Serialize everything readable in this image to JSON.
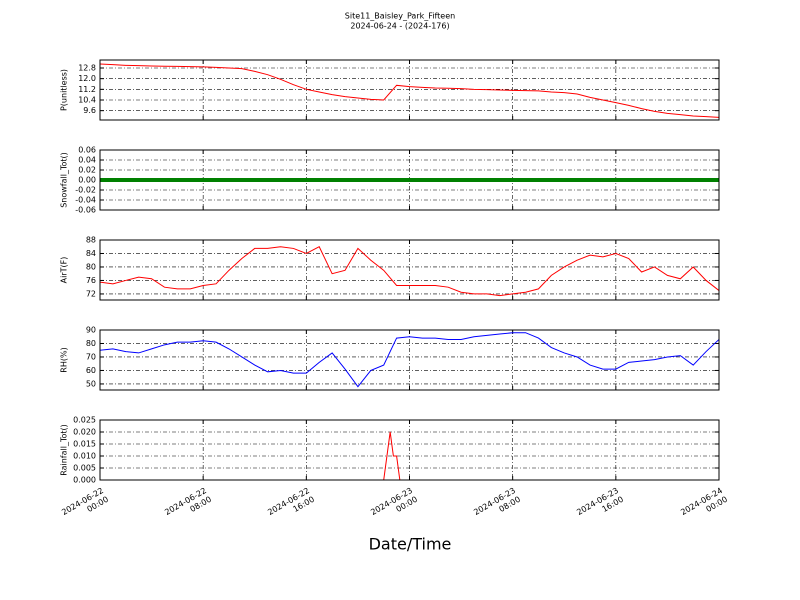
{
  "title": "Site11_Baisley_Park_Fifteen",
  "subtitle": "2024-06-24 - (2024-176)",
  "xlabel": "Date/Time",
  "xlim": [
    "2024-06-22 00:00",
    "2024-06-24 00:00"
  ],
  "xticks": [
    {
      "value": "2024-06-22 00:00",
      "label": "2024-06-22\n00:00"
    },
    {
      "value": "2024-06-22 08:00",
      "label": "2024-06-22\n08:00"
    },
    {
      "value": "2024-06-22 16:00",
      "label": "2024-06-22\n16:00"
    },
    {
      "value": "2024-06-23 00:00",
      "label": "2024-06-23\n00:00"
    },
    {
      "value": "2024-06-23 08:00",
      "label": "2024-06-23\n08:00"
    },
    {
      "value": "2024-06-23 16:00",
      "label": "2024-06-23\n16:00"
    },
    {
      "value": "2024-06-24 00:00",
      "label": "2024-06-24\n00:00"
    }
  ],
  "chart_data": [
    {
      "type": "line",
      "ylabel": "P(unitless)",
      "ylim": [
        8.9,
        13.4
      ],
      "grid": true,
      "color": "#ff0000",
      "yticks": [
        9.6,
        10.4,
        11.2,
        {
          "value": 12.0,
          "label": "12.0"
        },
        12.8
      ],
      "x": [
        "2024-06-22 00:00",
        "2024-06-22 01:00",
        "2024-06-22 02:00",
        "2024-06-22 03:00",
        "2024-06-22 04:00",
        "2024-06-22 05:00",
        "2024-06-22 06:00",
        "2024-06-22 07:00",
        "2024-06-22 08:00",
        "2024-06-22 09:00",
        "2024-06-22 10:00",
        "2024-06-22 11:00",
        "2024-06-22 12:00",
        "2024-06-22 13:00",
        "2024-06-22 14:00",
        "2024-06-22 15:00",
        "2024-06-22 16:00",
        "2024-06-22 17:00",
        "2024-06-22 18:00",
        "2024-06-22 19:00",
        "2024-06-22 20:00",
        "2024-06-22 21:00",
        "2024-06-22 22:00",
        "2024-06-22 23:00",
        "2024-06-23 00:00",
        "2024-06-23 01:00",
        "2024-06-23 02:00",
        "2024-06-23 03:00",
        "2024-06-23 04:00",
        "2024-06-23 05:00",
        "2024-06-23 06:00",
        "2024-06-23 07:00",
        "2024-06-23 08:00",
        "2024-06-23 09:00",
        "2024-06-23 10:00",
        "2024-06-23 11:00",
        "2024-06-23 12:00",
        "2024-06-23 13:00",
        "2024-06-23 14:00",
        "2024-06-23 15:00",
        "2024-06-23 16:00",
        "2024-06-23 17:00",
        "2024-06-23 18:00",
        "2024-06-23 19:00",
        "2024-06-23 20:00",
        "2024-06-23 21:00",
        "2024-06-23 22:00",
        "2024-06-23 23:00",
        "2024-06-24 00:00"
      ],
      "values": [
        13.1,
        13.05,
        13.0,
        12.98,
        12.95,
        12.93,
        12.92,
        12.9,
        12.88,
        12.85,
        12.8,
        12.75,
        12.55,
        12.3,
        11.95,
        11.55,
        11.2,
        11.0,
        10.8,
        10.65,
        10.55,
        10.45,
        10.4,
        11.5,
        11.4,
        11.35,
        11.3,
        11.28,
        11.25,
        11.2,
        11.18,
        11.15,
        11.12,
        11.1,
        11.08,
        11.0,
        10.95,
        10.85,
        10.6,
        10.4,
        10.2,
        10.0,
        9.75,
        9.55,
        9.4,
        9.3,
        9.2,
        9.15,
        9.1
      ]
    },
    {
      "type": "line",
      "ylabel": "Snowfall_Tot()",
      "ylim": [
        -0.06,
        0.06
      ],
      "grid": true,
      "color": "#008000",
      "yticks": [
        -0.06,
        -0.04,
        -0.02,
        {
          "value": 0,
          "label": "0.00"
        },
        0.02,
        0.04,
        0.06
      ],
      "x": [
        "2024-06-22 00:00",
        "2024-06-22 01:00",
        "2024-06-22 02:00",
        "2024-06-22 03:00",
        "2024-06-22 04:00",
        "2024-06-22 05:00",
        "2024-06-22 06:00",
        "2024-06-22 07:00",
        "2024-06-22 08:00",
        "2024-06-22 09:00",
        "2024-06-22 10:00",
        "2024-06-22 11:00",
        "2024-06-22 12:00",
        "2024-06-22 13:00",
        "2024-06-22 14:00",
        "2024-06-22 15:00",
        "2024-06-22 16:00",
        "2024-06-22 17:00",
        "2024-06-22 18:00",
        "2024-06-22 19:00",
        "2024-06-22 20:00",
        "2024-06-22 21:00",
        "2024-06-22 22:00",
        "2024-06-22 23:00",
        "2024-06-23 00:00",
        "2024-06-23 01:00",
        "2024-06-23 02:00",
        "2024-06-23 03:00",
        "2024-06-23 04:00",
        "2024-06-23 05:00",
        "2024-06-23 06:00",
        "2024-06-23 07:00",
        "2024-06-23 08:00",
        "2024-06-23 09:00",
        "2024-06-23 10:00",
        "2024-06-23 11:00",
        "2024-06-23 12:00",
        "2024-06-23 13:00",
        "2024-06-23 14:00",
        "2024-06-23 15:00",
        "2024-06-23 16:00",
        "2024-06-23 17:00",
        "2024-06-23 18:00",
        "2024-06-23 19:00",
        "2024-06-23 20:00",
        "2024-06-23 21:00",
        "2024-06-23 22:00",
        "2024-06-23 23:00",
        "2024-06-24 00:00"
      ],
      "values": [
        0,
        0,
        0,
        0,
        0,
        0,
        0,
        0,
        0,
        0,
        0,
        0,
        0,
        0,
        0,
        0,
        0,
        0,
        0,
        0,
        0,
        0,
        0,
        0,
        0,
        0,
        0,
        0,
        0,
        0,
        0,
        0,
        0,
        0,
        0,
        0,
        0,
        0,
        0,
        0,
        0,
        0,
        0,
        0,
        0,
        0,
        0,
        0,
        0
      ]
    },
    {
      "type": "line",
      "ylabel": "AirT(F)",
      "ylim": [
        70.2,
        88
      ],
      "grid": true,
      "color": "#ff0000",
      "yticks": [
        72,
        76,
        80,
        84,
        88
      ],
      "x": [
        "2024-06-22 00:00",
        "2024-06-22 01:00",
        "2024-06-22 02:00",
        "2024-06-22 03:00",
        "2024-06-22 04:00",
        "2024-06-22 05:00",
        "2024-06-22 06:00",
        "2024-06-22 07:00",
        "2024-06-22 08:00",
        "2024-06-22 09:00",
        "2024-06-22 10:00",
        "2024-06-22 11:00",
        "2024-06-22 12:00",
        "2024-06-22 13:00",
        "2024-06-22 14:00",
        "2024-06-22 15:00",
        "2024-06-22 16:00",
        "2024-06-22 17:00",
        "2024-06-22 18:00",
        "2024-06-22 19:00",
        "2024-06-22 20:00",
        "2024-06-22 21:00",
        "2024-06-22 22:00",
        "2024-06-22 23:00",
        "2024-06-23 00:00",
        "2024-06-23 01:00",
        "2024-06-23 02:00",
        "2024-06-23 03:00",
        "2024-06-23 04:00",
        "2024-06-23 05:00",
        "2024-06-23 06:00",
        "2024-06-23 07:00",
        "2024-06-23 08:00",
        "2024-06-23 09:00",
        "2024-06-23 10:00",
        "2024-06-23 11:00",
        "2024-06-23 12:00",
        "2024-06-23 13:00",
        "2024-06-23 14:00",
        "2024-06-23 15:00",
        "2024-06-23 16:00",
        "2024-06-23 17:00",
        "2024-06-23 18:00",
        "2024-06-23 19:00",
        "2024-06-23 20:00",
        "2024-06-23 21:00",
        "2024-06-23 22:00",
        "2024-06-23 23:00",
        "2024-06-24 00:00"
      ],
      "values": [
        75.5,
        75,
        76,
        77,
        76.5,
        74,
        73.5,
        73.5,
        74.5,
        75,
        79,
        82.5,
        85.5,
        85.5,
        86,
        85.5,
        84,
        86,
        78,
        79,
        85.5,
        82,
        79,
        74.5,
        74.5,
        74.5,
        74.5,
        74,
        72.5,
        72,
        72,
        71.5,
        72,
        72.5,
        73.5,
        77.5,
        80,
        82,
        83.5,
        83,
        84,
        82.5,
        78.5,
        80,
        77.5,
        76.5,
        80,
        76,
        73
      ]
    },
    {
      "type": "line",
      "ylabel": "RH(%)",
      "ylim": [
        45.5,
        90
      ],
      "grid": true,
      "color": "#0000ff",
      "yticks": [
        50,
        60,
        70,
        80,
        90
      ],
      "x": [
        "2024-06-22 00:00",
        "2024-06-22 01:00",
        "2024-06-22 02:00",
        "2024-06-22 03:00",
        "2024-06-22 04:00",
        "2024-06-22 05:00",
        "2024-06-22 06:00",
        "2024-06-22 07:00",
        "2024-06-22 08:00",
        "2024-06-22 09:00",
        "2024-06-22 10:00",
        "2024-06-22 11:00",
        "2024-06-22 12:00",
        "2024-06-22 13:00",
        "2024-06-22 14:00",
        "2024-06-22 15:00",
        "2024-06-22 16:00",
        "2024-06-22 17:00",
        "2024-06-22 18:00",
        "2024-06-22 19:00",
        "2024-06-22 20:00",
        "2024-06-22 21:00",
        "2024-06-22 22:00",
        "2024-06-22 23:00",
        "2024-06-23 00:00",
        "2024-06-23 01:00",
        "2024-06-23 02:00",
        "2024-06-23 03:00",
        "2024-06-23 04:00",
        "2024-06-23 05:00",
        "2024-06-23 06:00",
        "2024-06-23 07:00",
        "2024-06-23 08:00",
        "2024-06-23 09:00",
        "2024-06-23 10:00",
        "2024-06-23 11:00",
        "2024-06-23 12:00",
        "2024-06-23 13:00",
        "2024-06-23 14:00",
        "2024-06-23 15:00",
        "2024-06-23 16:00",
        "2024-06-23 17:00",
        "2024-06-23 18:00",
        "2024-06-23 19:00",
        "2024-06-23 20:00",
        "2024-06-23 21:00",
        "2024-06-23 22:00",
        "2024-06-23 23:00",
        "2024-06-24 00:00"
      ],
      "values": [
        75,
        76,
        74,
        73,
        76,
        79,
        81,
        81,
        82,
        81,
        76,
        70,
        64,
        59,
        60,
        58,
        58,
        66,
        73,
        61,
        48,
        60,
        64,
        84,
        85,
        84,
        84,
        83,
        83,
        85,
        86,
        87,
        88,
        88,
        84,
        77,
        73,
        70,
        64,
        61,
        61,
        66,
        67,
        68,
        70,
        71,
        64,
        74,
        83
      ]
    },
    {
      "type": "line",
      "ylabel": "Rainfall_Tot()",
      "ylim": [
        0,
        0.025
      ],
      "grid": true,
      "color": "#ff0000",
      "yticks": [
        {
          "value": 0,
          "label": "0.000"
        },
        0.005,
        {
          "value": 0.01,
          "label": "0.010"
        },
        0.015,
        {
          "value": 0.02,
          "label": "0.020"
        },
        0.025
      ],
      "x": [
        "2024-06-22 00:00",
        "2024-06-22 01:00",
        "2024-06-22 02:00",
        "2024-06-22 03:00",
        "2024-06-22 04:00",
        "2024-06-22 05:00",
        "2024-06-22 06:00",
        "2024-06-22 07:00",
        "2024-06-22 08:00",
        "2024-06-22 09:00",
        "2024-06-22 10:00",
        "2024-06-22 11:00",
        "2024-06-22 12:00",
        "2024-06-22 13:00",
        "2024-06-22 14:00",
        "2024-06-22 15:00",
        "2024-06-22 16:00",
        "2024-06-22 17:00",
        "2024-06-22 18:00",
        "2024-06-22 19:00",
        "2024-06-22 20:00",
        "2024-06-22 21:00",
        "2024-06-22 22:00",
        "2024-06-22 22:30",
        "2024-06-22 22:45",
        "2024-06-22 23:00",
        "2024-06-22 23:15",
        "2024-06-23 00:00",
        "2024-06-23 01:00",
        "2024-06-23 02:00",
        "2024-06-23 03:00",
        "2024-06-23 04:00",
        "2024-06-23 05:00",
        "2024-06-23 06:00",
        "2024-06-23 07:00",
        "2024-06-23 08:00",
        "2024-06-23 09:00",
        "2024-06-23 10:00",
        "2024-06-23 11:00",
        "2024-06-23 12:00",
        "2024-06-23 13:00",
        "2024-06-23 14:00",
        "2024-06-23 15:00",
        "2024-06-23 16:00",
        "2024-06-23 17:00",
        "2024-06-23 18:00",
        "2024-06-23 19:00",
        "2024-06-23 20:00",
        "2024-06-23 21:00",
        "2024-06-23 22:00",
        "2024-06-23 23:00",
        "2024-06-24 00:00"
      ],
      "values": [
        0,
        0,
        0,
        0,
        0,
        0,
        0,
        0,
        0,
        0,
        0,
        0,
        0,
        0,
        0,
        0,
        0,
        0,
        0,
        0,
        0,
        0,
        0,
        0.02,
        0.01,
        0.01,
        0,
        0,
        0,
        0,
        0,
        0,
        0,
        0,
        0,
        0,
        0,
        0,
        0,
        0,
        0,
        0,
        0,
        0,
        0,
        0,
        0,
        0,
        0,
        0,
        0,
        0
      ]
    }
  ]
}
